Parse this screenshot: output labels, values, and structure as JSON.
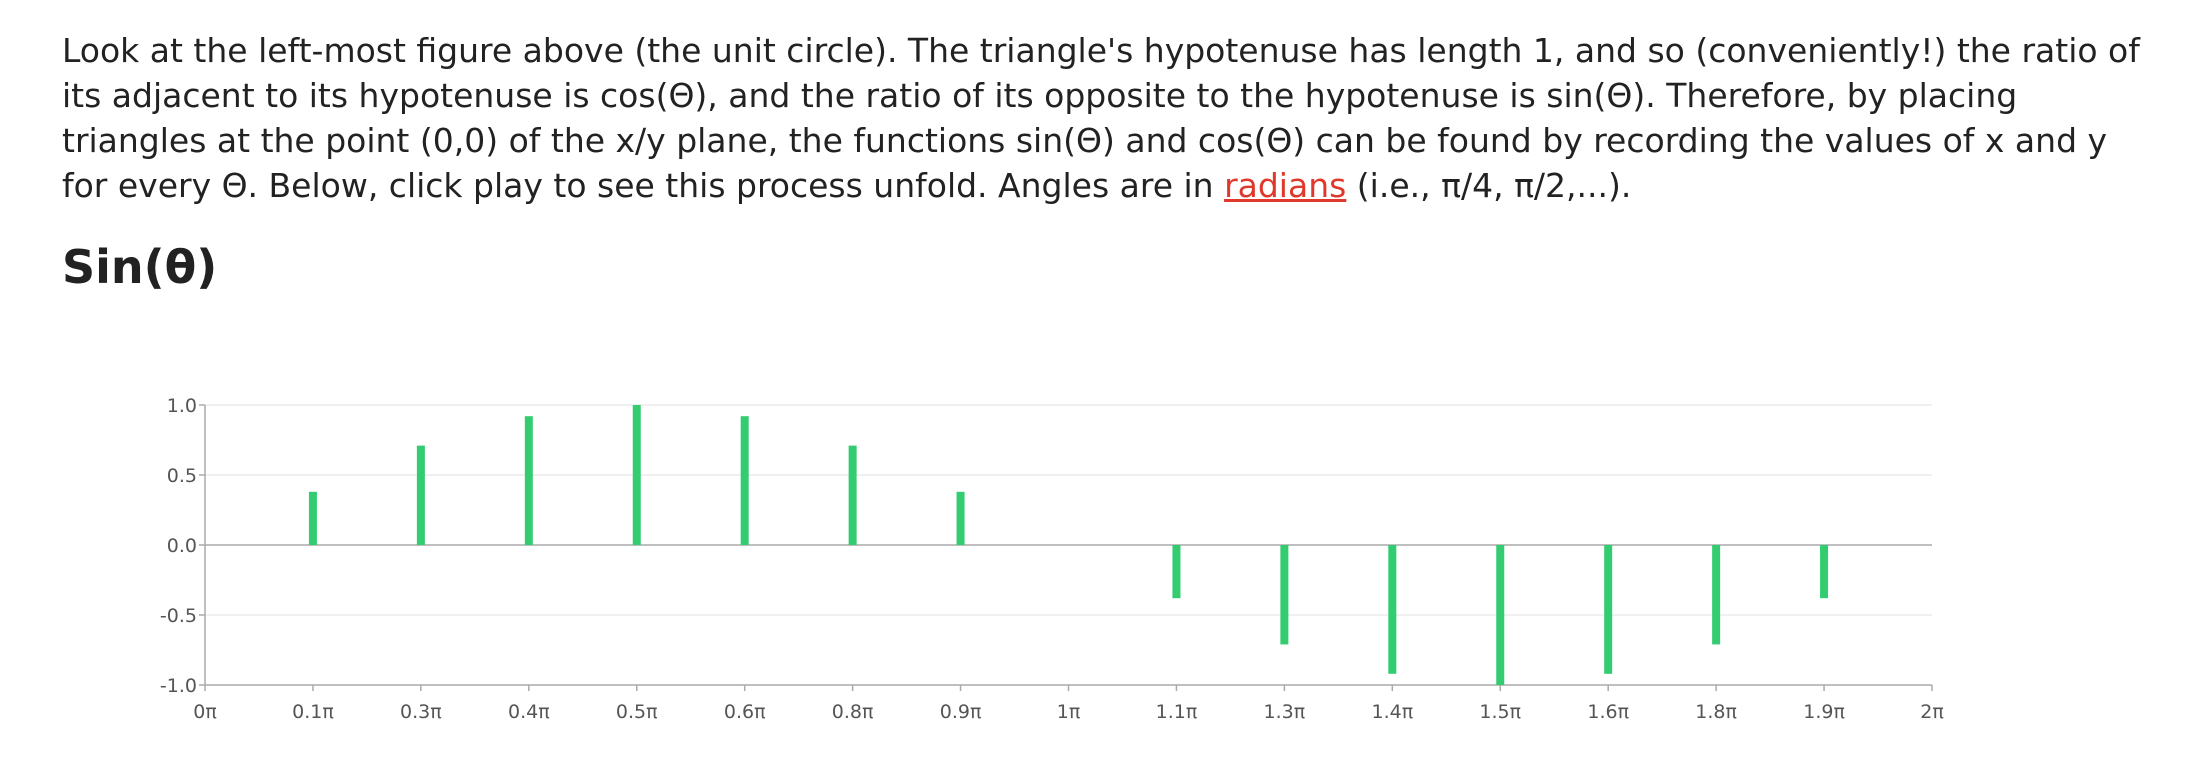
{
  "paragraph": {
    "before_link": "Look at the left-most figure above (the unit circle). The triangle's hypotenuse has length 1, and so (conveniently!) the ratio of its adjacent to its hypotenuse is cos(Θ), and the ratio of its opposite to the hypotenuse is sin(Θ). Therefore, by placing triangles at the point (0,0) of the x/y plane, the functions sin(Θ) and cos(Θ) can be found by recording the values of x and y for every Θ. Below, click play to see this process unfold. Angles are in ",
    "link_text": "radians",
    "after_link": " (i.e., π/4, π/2,...)."
  },
  "section_title": "Sin(θ)",
  "colors": {
    "bar": "#33cc70",
    "link": "#e0392b",
    "grid": "#e2e2e2",
    "axis": "#aaaaaa"
  },
  "chart_data": {
    "type": "bar",
    "title": "Sin(θ)",
    "xlabel": "",
    "ylabel": "",
    "ylim": [
      -1.0,
      1.0
    ],
    "yticks": [
      "1.0",
      "0.5",
      "0.0",
      "-0.5",
      "-1.0"
    ],
    "ytick_values": [
      1.0,
      0.5,
      0.0,
      -0.5,
      -1.0
    ],
    "xlim": [
      0,
      16
    ],
    "categories": [
      "0π",
      "0.1π",
      "0.3π",
      "0.4π",
      "0.5π",
      "0.6π",
      "0.8π",
      "0.9π",
      "1π",
      "1.1π",
      "1.3π",
      "1.4π",
      "1.5π",
      "1.6π",
      "1.8π",
      "1.9π",
      "2π"
    ],
    "values": [
      0,
      0.38,
      0.71,
      0.92,
      1.0,
      0.92,
      0.71,
      0.38,
      0,
      -0.38,
      -0.71,
      -0.92,
      -1.0,
      -0.92,
      -0.71,
      -0.38,
      null
    ],
    "grid": true,
    "legend": "none"
  }
}
